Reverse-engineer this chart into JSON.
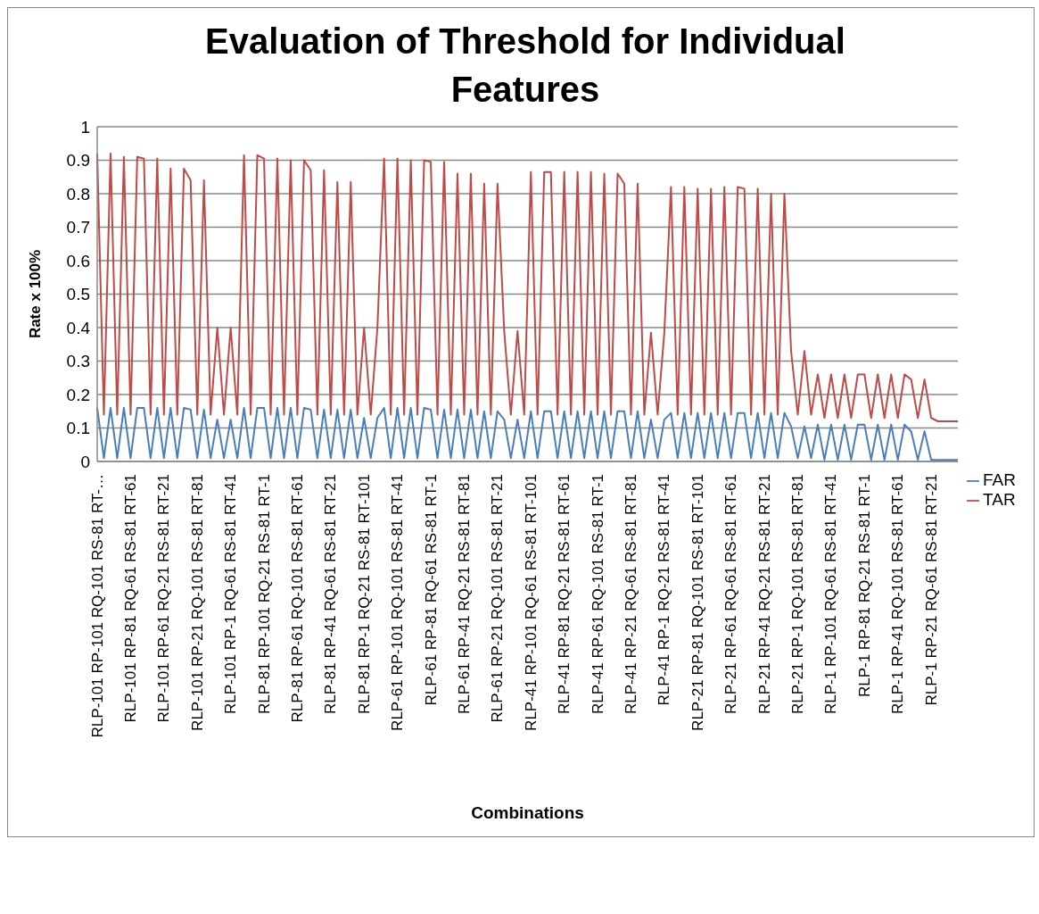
{
  "chart_data": {
    "type": "line",
    "title": "Evaluation of Threshold for Individual Features",
    "xlabel": "Combinations",
    "ylabel": "Rate x 100%",
    "categories": [
      "RLP-101 RP-101 RQ-101 RS-81 RT-…",
      null,
      null,
      null,
      null,
      "RLP-101 RP-81 RQ-61 RS-81 RT-61",
      null,
      null,
      null,
      null,
      "RLP-101 RP-61 RQ-21 RS-81 RT-21",
      null,
      null,
      null,
      null,
      "RLP-101 RP-21 RQ-101 RS-81 RT-81",
      null,
      null,
      null,
      null,
      "RLP-101 RP-1 RQ-61 RS-81 RT-41",
      null,
      null,
      null,
      null,
      "RLP-81 RP-101 RQ-21 RS-81 RT-1",
      null,
      null,
      null,
      null,
      "RLP-81 RP-61 RQ-101 RS-81 RT-61",
      null,
      null,
      null,
      null,
      "RLP-81 RP-41 RQ-61 RS-81 RT-21",
      null,
      null,
      null,
      null,
      "RLP-81 RP-1 RQ-21 RS-81 RT-101",
      null,
      null,
      null,
      null,
      "RLP-61 RP-101 RQ-101 RS-81 RT-41",
      null,
      null,
      null,
      null,
      "RLP-61 RP-81 RQ-61 RS-81 RT-1",
      null,
      null,
      null,
      null,
      "RLP-61 RP-41 RQ-21 RS-81 RT-81",
      null,
      null,
      null,
      null,
      "RLP-61 RP-21 RQ-101 RS-81 RT-21",
      null,
      null,
      null,
      null,
      "RLP-41 RP-101 RQ-61 RS-81 RT-101",
      null,
      null,
      null,
      null,
      "RLP-41 RP-81 RQ-21 RS-81 RT-61",
      null,
      null,
      null,
      null,
      "RLP-41 RP-61 RQ-101 RS-81 RT-1",
      null,
      null,
      null,
      null,
      "RLP-41 RP-21 RQ-61 RS-81 RT-81",
      null,
      null,
      null,
      null,
      "RLP-41 RP-1 RQ-21 RS-81 RT-41",
      null,
      null,
      null,
      null,
      "RLP-21 RP-81 RQ-101 RS-81 RT-101",
      null,
      null,
      null,
      null,
      "RLP-21 RP-61 RQ-61 RS-81 RT-61",
      null,
      null,
      null,
      null,
      "RLP-21 RP-41 RQ-21 RS-81 RT-21",
      null,
      null,
      null,
      null,
      "RLP-21 RP-1 RQ-101 RS-81 RT-81",
      null,
      null,
      null,
      null,
      "RLP-1 RP-101 RQ-61 RS-81 RT-41",
      null,
      null,
      null,
      null,
      "RLP-1 RP-81 RQ-21 RS-81 RT-1",
      null,
      null,
      null,
      null,
      "RLP-1 RP-41 RQ-101 RS-81 RT-61",
      null,
      null,
      null,
      null,
      "RLP-1 RP-21 RQ-61 RS-81 RT-21",
      null,
      null,
      null,
      null
    ],
    "series": [
      {
        "name": "FAR",
        "color": "#4a7ebb",
        "values": [
          0.16,
          0.01,
          0.16,
          0.01,
          0.16,
          0.01,
          0.16,
          0.16,
          0.01,
          0.16,
          0.01,
          0.16,
          0.01,
          0.16,
          0.155,
          0.01,
          0.155,
          0.01,
          0.125,
          0.01,
          0.125,
          0.01,
          0.16,
          0.01,
          0.16,
          0.16,
          0.01,
          0.16,
          0.01,
          0.16,
          0.01,
          0.16,
          0.155,
          0.01,
          0.155,
          0.01,
          0.155,
          0.01,
          0.155,
          0.01,
          0.13,
          0.01,
          0.13,
          0.16,
          0.01,
          0.16,
          0.01,
          0.16,
          0.01,
          0.16,
          0.155,
          0.01,
          0.155,
          0.01,
          0.155,
          0.01,
          0.155,
          0.01,
          0.15,
          0.01,
          0.15,
          0.125,
          0.01,
          0.125,
          0.01,
          0.15,
          0.01,
          0.15,
          0.15,
          0.01,
          0.15,
          0.01,
          0.15,
          0.01,
          0.15,
          0.01,
          0.15,
          0.01,
          0.15,
          0.15,
          0.01,
          0.15,
          0.01,
          0.125,
          0.01,
          0.125,
          0.145,
          0.01,
          0.145,
          0.01,
          0.145,
          0.01,
          0.145,
          0.01,
          0.145,
          0.01,
          0.145,
          0.145,
          0.01,
          0.145,
          0.01,
          0.145,
          0.01,
          0.145,
          0.105,
          0.01,
          0.105,
          0.01,
          0.11,
          0.005,
          0.11,
          0.005,
          0.11,
          0.005,
          0.11,
          0.11,
          0.005,
          0.11,
          0.005,
          0.11,
          0.005,
          0.11,
          0.09,
          0.005,
          0.09,
          0.005,
          0.005,
          0.005,
          0.005,
          0.005
        ]
      },
      {
        "name": "TAR",
        "color": "#be4b48",
        "values": [
          0.92,
          0.14,
          0.92,
          0.14,
          0.91,
          0.14,
          0.91,
          0.905,
          0.14,
          0.905,
          0.14,
          0.875,
          0.14,
          0.875,
          0.84,
          0.14,
          0.84,
          0.14,
          0.4,
          0.14,
          0.4,
          0.14,
          0.915,
          0.14,
          0.915,
          0.905,
          0.14,
          0.905,
          0.14,
          0.9,
          0.14,
          0.9,
          0.87,
          0.14,
          0.87,
          0.14,
          0.835,
          0.14,
          0.835,
          0.14,
          0.4,
          0.14,
          0.4,
          0.905,
          0.14,
          0.905,
          0.14,
          0.9,
          0.14,
          0.9,
          0.895,
          0.14,
          0.895,
          0.14,
          0.86,
          0.14,
          0.86,
          0.14,
          0.83,
          0.14,
          0.83,
          0.39,
          0.14,
          0.39,
          0.14,
          0.865,
          0.14,
          0.865,
          0.865,
          0.14,
          0.865,
          0.14,
          0.865,
          0.14,
          0.865,
          0.14,
          0.86,
          0.14,
          0.86,
          0.83,
          0.14,
          0.83,
          0.14,
          0.385,
          0.14,
          0.385,
          0.82,
          0.14,
          0.82,
          0.14,
          0.815,
          0.14,
          0.815,
          0.14,
          0.82,
          0.14,
          0.82,
          0.815,
          0.14,
          0.815,
          0.14,
          0.8,
          0.14,
          0.8,
          0.33,
          0.14,
          0.33,
          0.14,
          0.26,
          0.13,
          0.26,
          0.13,
          0.26,
          0.13,
          0.26,
          0.26,
          0.13,
          0.26,
          0.13,
          0.26,
          0.13,
          0.26,
          0.245,
          0.13,
          0.245,
          0.13,
          0.12,
          0.12,
          0.12,
          0.12
        ]
      }
    ],
    "ylim": [
      0,
      1
    ],
    "yticks": [
      0,
      0.1,
      0.2,
      0.3,
      0.4,
      0.5,
      0.6,
      0.7,
      0.8,
      0.9,
      1
    ],
    "grid": "y",
    "legend": "right",
    "marker": "none",
    "line_style": "solid"
  }
}
